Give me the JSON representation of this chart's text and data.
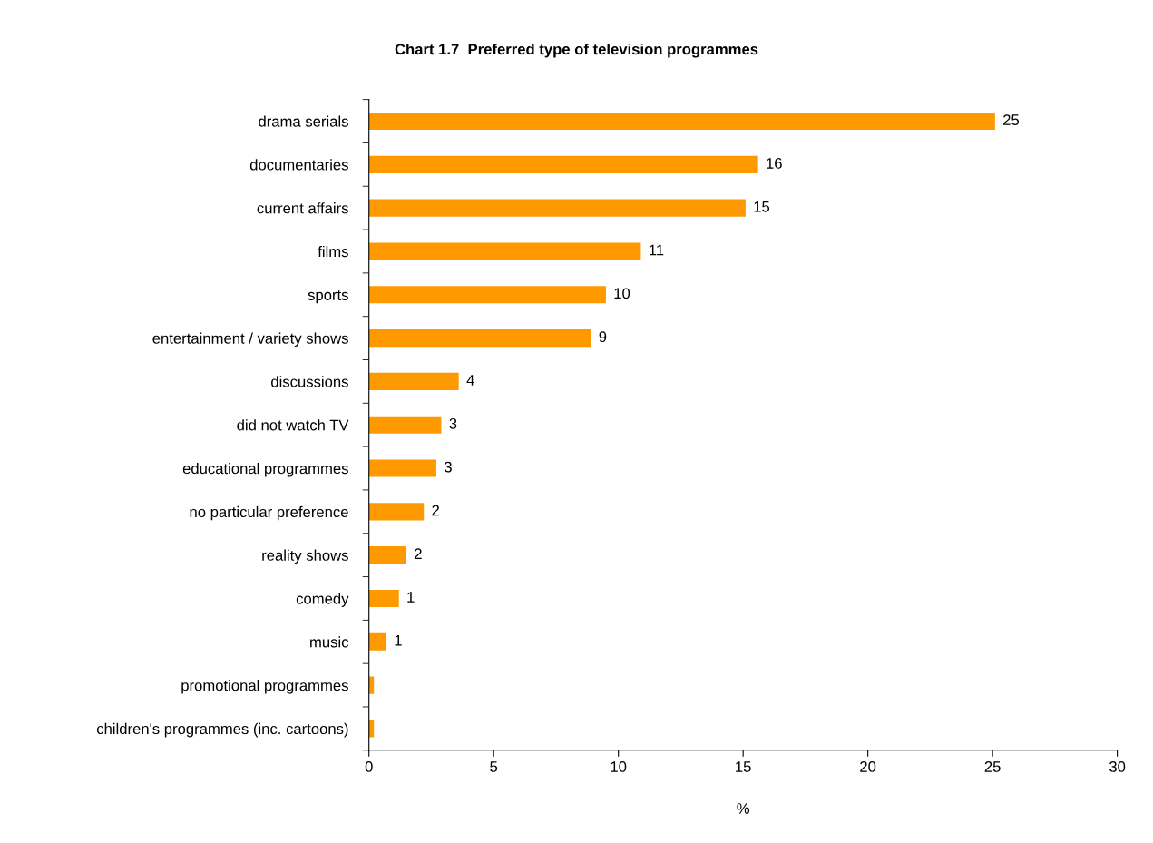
{
  "chart_data": {
    "type": "bar",
    "orientation": "horizontal",
    "title": "Chart 1.7  Preferred type of television programmes",
    "xlabel": "%",
    "categories": [
      "drama serials",
      "documentaries",
      "current affairs",
      "films",
      "sports",
      "entertainment / variety shows",
      "discussions",
      "did not watch TV",
      "educational programmes",
      "no particular preference",
      "reality shows",
      "comedy",
      "music",
      "promotional programmes",
      "children's programmes (inc. cartoons)"
    ],
    "values": [
      25.1,
      15.6,
      15.1,
      10.9,
      9.5,
      8.9,
      3.6,
      2.9,
      2.7,
      2.2,
      1.5,
      1.2,
      0.7,
      0.2,
      0.2
    ],
    "value_labels": [
      "25",
      "16",
      "15",
      "11",
      "10",
      "9",
      "4",
      "3",
      "3",
      "2",
      "2",
      "1",
      "1",
      null,
      null
    ],
    "color": "#ff9900",
    "xlim": [
      0,
      30
    ],
    "xticks": [
      0,
      5,
      10,
      15,
      20,
      25,
      30
    ],
    "grid": false
  }
}
